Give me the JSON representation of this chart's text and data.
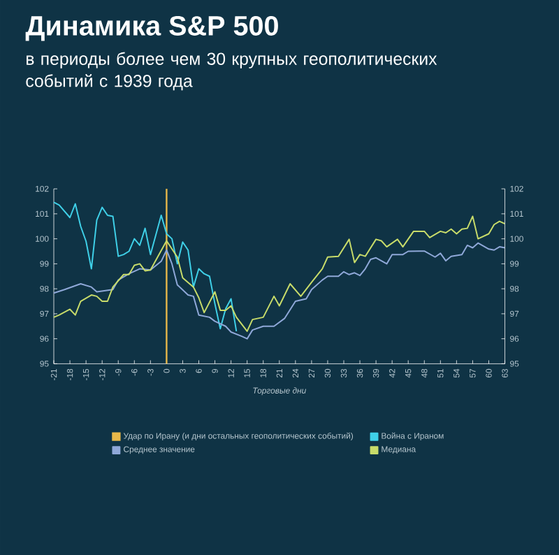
{
  "chart_data": {
    "type": "line",
    "title": "Динамика S&P 500",
    "subtitle": "в периоды более чем 30 крупных геополитических событий с 1939 года",
    "xlabel": "Торговые дни",
    "xlim": [
      -21,
      63
    ],
    "xticks": [
      -21,
      -18,
      -15,
      -12,
      -9,
      -6,
      -3,
      0,
      3,
      6,
      9,
      12,
      15,
      18,
      21,
      24,
      27,
      30,
      33,
      36,
      39,
      42,
      45,
      48,
      51,
      54,
      57,
      60,
      63
    ],
    "ylim": [
      95,
      102
    ],
    "yticks": [
      95,
      96,
      97,
      98,
      99,
      100,
      101,
      102
    ],
    "y2lim": [
      95,
      102
    ],
    "y2ticks": [
      95,
      96,
      97,
      98,
      99,
      100,
      101,
      102
    ],
    "grid": false,
    "legend": "bottom",
    "marker": "none",
    "line_style": "solid",
    "ref_lines": [
      {
        "axis": "x",
        "value": 0,
        "label": "Удар по Ирану (и дни остальных геополитических событий)",
        "color": "#e8b84a"
      }
    ],
    "series": [
      {
        "name": "Война с Ираном",
        "color": "#3fd0e8",
        "x": [
          -21,
          -20,
          -18,
          -17,
          -16,
          -15,
          -14,
          -13,
          -12,
          -11,
          -10,
          -9,
          -8,
          -7,
          -6,
          -5,
          -4,
          -3,
          -1,
          0,
          1,
          2,
          3,
          4,
          5,
          6,
          7,
          8,
          9,
          10,
          11,
          12,
          13
        ],
        "values": [
          101.46,
          101.35,
          100.85,
          101.4,
          100.5,
          99.9,
          98.8,
          100.75,
          101.26,
          100.94,
          100.9,
          99.3,
          99.37,
          99.5,
          100.0,
          99.74,
          100.42,
          99.37,
          100.94,
          100.2,
          100.0,
          99.0,
          99.87,
          99.55,
          98.07,
          98.8,
          98.6,
          98.5,
          97.4,
          96.4,
          97.2,
          97.6,
          96.3
        ]
      },
      {
        "name": "Среднее значение",
        "color": "#8fa8d8",
        "x": [
          -21,
          -19,
          -16,
          -14,
          -13,
          -10,
          -9,
          -7,
          -5,
          -3,
          -1,
          0,
          1,
          2,
          4,
          5,
          6,
          8,
          9,
          11,
          12,
          14,
          15,
          16,
          18,
          20,
          22,
          24,
          26,
          27,
          29,
          30,
          32,
          33,
          34,
          35,
          36,
          37,
          38,
          39,
          41,
          42,
          44,
          45,
          47,
          48,
          50,
          51,
          52,
          53,
          55,
          56,
          57,
          58,
          60,
          61,
          62,
          63
        ],
        "values": [
          97.83,
          97.97,
          98.2,
          98.07,
          97.88,
          97.97,
          98.35,
          98.6,
          98.8,
          98.75,
          99.1,
          99.55,
          99.0,
          98.16,
          97.75,
          97.7,
          96.95,
          96.86,
          96.7,
          96.5,
          96.27,
          96.1,
          96.0,
          96.35,
          96.5,
          96.5,
          96.82,
          97.5,
          97.6,
          97.97,
          98.35,
          98.5,
          98.5,
          98.68,
          98.57,
          98.64,
          98.53,
          98.8,
          99.18,
          99.24,
          99.0,
          99.37,
          99.37,
          99.5,
          99.51,
          99.51,
          99.27,
          99.42,
          99.12,
          99.3,
          99.37,
          99.74,
          99.64,
          99.83,
          99.59,
          99.55,
          99.68,
          99.64
        ]
      },
      {
        "name": "Медиана",
        "color": "#c8dc6a",
        "x": [
          -21,
          -20,
          -18,
          -17,
          -16,
          -14,
          -13,
          -12,
          -11,
          -10,
          -8,
          -7,
          -6,
          -5,
          -4,
          -3,
          0,
          2,
          3,
          5,
          6,
          7,
          9,
          10,
          11,
          12,
          13,
          15,
          16,
          18,
          20,
          21,
          23,
          25,
          27,
          29,
          30,
          32,
          34,
          35,
          36,
          37,
          39,
          40,
          41,
          43,
          44,
          46,
          48,
          49,
          51,
          52,
          53,
          54,
          55,
          56,
          57,
          58,
          60,
          61,
          62,
          63
        ],
        "values": [
          96.86,
          96.95,
          97.18,
          96.95,
          97.5,
          97.75,
          97.7,
          97.5,
          97.5,
          98.07,
          98.57,
          98.57,
          98.94,
          99.0,
          98.72,
          98.75,
          99.92,
          99.27,
          98.44,
          98.07,
          97.64,
          97.05,
          97.88,
          97.14,
          97.14,
          97.32,
          96.86,
          96.3,
          96.77,
          96.86,
          97.7,
          97.32,
          98.2,
          97.7,
          98.26,
          98.8,
          99.27,
          99.3,
          99.98,
          99.05,
          99.37,
          99.3,
          99.98,
          99.92,
          99.68,
          99.98,
          99.68,
          100.3,
          100.3,
          100.05,
          100.3,
          100.24,
          100.39,
          100.2,
          100.39,
          100.42,
          100.9,
          100.0,
          100.2,
          100.57,
          100.7,
          100.6
        ]
      }
    ]
  }
}
